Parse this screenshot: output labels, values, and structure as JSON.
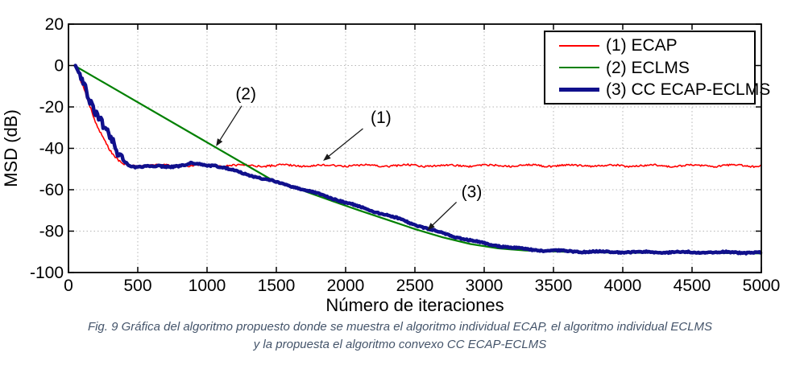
{
  "chart_data": {
    "type": "line",
    "title": "",
    "xlabel": "Número de iteraciones",
    "ylabel": "MSD (dB)",
    "xlim": [
      0,
      5000
    ],
    "ylim": [
      -100,
      20
    ],
    "xticks": [
      0,
      500,
      1000,
      1500,
      2000,
      2500,
      3000,
      3500,
      4000,
      4500,
      5000
    ],
    "yticks": [
      20,
      0,
      -20,
      -40,
      -60,
      -80,
      -100
    ],
    "grid": "dotted",
    "grid_color": "#b5b5b5",
    "legend_position": "top-right",
    "series": [
      {
        "name": "(1) ECAP",
        "color": "#ff0000",
        "width": 1.6,
        "points": [
          [
            50,
            0
          ],
          [
            90,
            -8
          ],
          [
            140,
            -17
          ],
          [
            190,
            -26
          ],
          [
            240,
            -33
          ],
          [
            290,
            -40
          ],
          [
            340,
            -45
          ],
          [
            390,
            -47.6
          ],
          [
            450,
            -48.3
          ],
          [
            5000,
            -48.4
          ]
        ],
        "noise": [
          {
            "from": 60,
            "to": 420,
            "amp": 1.1
          },
          {
            "from": 420,
            "to": 5000,
            "amp": 0.75
          }
        ]
      },
      {
        "name": "(2) ECLMS",
        "color": "#008000",
        "width": 2.2,
        "points": [
          [
            55,
            -0.5
          ],
          [
            1500,
            -56.5
          ],
          [
            1700,
            -60.6
          ],
          [
            1900,
            -65.4
          ],
          [
            2100,
            -70
          ],
          [
            2300,
            -74.5
          ],
          [
            2500,
            -79
          ],
          [
            2700,
            -83
          ],
          [
            2900,
            -86.2
          ],
          [
            3100,
            -88.3
          ],
          [
            3300,
            -89.4
          ],
          [
            3600,
            -90
          ],
          [
            4000,
            -90.5
          ],
          [
            4500,
            -90.4
          ],
          [
            5000,
            -90.8
          ]
        ]
      },
      {
        "name": "(3) CC ECAP-ECLMS",
        "color": "#10108c",
        "width": 4.5,
        "points": [
          [
            50,
            0
          ],
          [
            100,
            -7
          ],
          [
            150,
            -14
          ],
          [
            200,
            -22
          ],
          [
            250,
            -29
          ],
          [
            300,
            -36
          ],
          [
            350,
            -42
          ],
          [
            400,
            -46
          ],
          [
            440,
            -48
          ],
          [
            480,
            -48.8
          ],
          [
            560,
            -48.9
          ],
          [
            650,
            -48.7
          ],
          [
            750,
            -48.6
          ],
          [
            800,
            -48.4
          ],
          [
            850,
            -47.9
          ],
          [
            880,
            -47.3
          ],
          [
            920,
            -47.6
          ],
          [
            1000,
            -48.3
          ],
          [
            1040,
            -47.9
          ],
          [
            1080,
            -48.6
          ],
          [
            1120,
            -49.4
          ],
          [
            1200,
            -50.9
          ],
          [
            1300,
            -52.8
          ],
          [
            1400,
            -54.6
          ],
          [
            1500,
            -56.3
          ],
          [
            1600,
            -58.1
          ],
          [
            1700,
            -60
          ],
          [
            1800,
            -61.9
          ],
          [
            1900,
            -64
          ],
          [
            2000,
            -66.2
          ],
          [
            2100,
            -68.3
          ],
          [
            2200,
            -70.3
          ],
          [
            2300,
            -72.3
          ],
          [
            2400,
            -74.5
          ],
          [
            2500,
            -76.8
          ],
          [
            2600,
            -79
          ],
          [
            2700,
            -81
          ],
          [
            2800,
            -82.8
          ],
          [
            2900,
            -84.5
          ],
          [
            3000,
            -85.9
          ],
          [
            3100,
            -87
          ],
          [
            3200,
            -88
          ],
          [
            3300,
            -88.7
          ],
          [
            3400,
            -89.2
          ],
          [
            3500,
            -89.5
          ],
          [
            3700,
            -89.9
          ],
          [
            4000,
            -90.1
          ],
          [
            4300,
            -90.2
          ],
          [
            4600,
            -90.2
          ],
          [
            5000,
            -90.4
          ]
        ],
        "noise": [
          {
            "from": 80,
            "to": 390,
            "amp": 3.6
          },
          {
            "from": 390,
            "to": 1100,
            "amp": 0.6
          },
          {
            "from": 1100,
            "to": 5000,
            "amp": 0.5
          }
        ]
      }
    ],
    "annotations": [
      {
        "label": "(2)",
        "text_xy": [
          1280,
          -13.5
        ],
        "arrow_from": [
          1250,
          -19.5
        ],
        "arrow_to": [
          1065,
          -39
        ]
      },
      {
        "label": "(1)",
        "text_xy": [
          2255,
          -25
        ],
        "arrow_from": [
          2125,
          -30.5
        ],
        "arrow_to": [
          1838,
          -46
        ]
      },
      {
        "label": "(3)",
        "text_xy": [
          2910,
          -61
        ],
        "arrow_from": [
          2800,
          -66
        ],
        "arrow_to": [
          2590,
          -79.5
        ]
      }
    ]
  },
  "caption": {
    "line1": "Fig. 9 Gráfica del algoritmo propuesto donde se muestra el algoritmo individual ECAP, el algoritmo individual ECLMS",
    "line2": "y la propuesta el algoritmo convexo CC ECAP-ECLMS",
    "color": "#44546A"
  }
}
